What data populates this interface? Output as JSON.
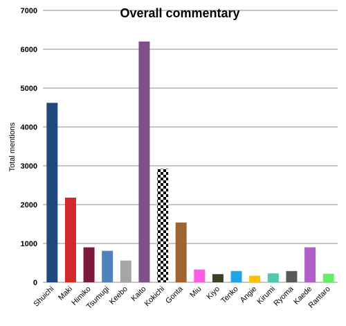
{
  "chart_data": {
    "type": "bar",
    "title": "Overall commentary",
    "xlabel": "",
    "ylabel": "Total mentions",
    "ylim": [
      0,
      7000
    ],
    "yticks": [
      0,
      1000,
      2000,
      3000,
      4000,
      5000,
      6000,
      7000
    ],
    "grid": true,
    "legend": "none",
    "categories": [
      "Shuichi",
      "Maki",
      "Himiko",
      "Tsumugi",
      "Keebo",
      "Kaito",
      "Kokichi",
      "Gonta",
      "Miu",
      "Kiyo",
      "Tenko",
      "Angie",
      "Kirumi",
      "Ryoma",
      "Kaede",
      "Rantaro"
    ],
    "values": [
      4620,
      2180,
      900,
      810,
      560,
      6200,
      2920,
      1540,
      330,
      210,
      290,
      170,
      230,
      290,
      900,
      220
    ],
    "colors": [
      "#1f497d",
      "#d12a2a",
      "#7b1a3a",
      "#4f81bd",
      "#a5a5a5",
      "#7f4f8a",
      "checker",
      "#a0652f",
      "#ff5ce6",
      "#3a4223",
      "#1ea7e6",
      "#ffc000",
      "#4fc9b4",
      "#595959",
      "#b05ec9",
      "#66ee66"
    ]
  }
}
